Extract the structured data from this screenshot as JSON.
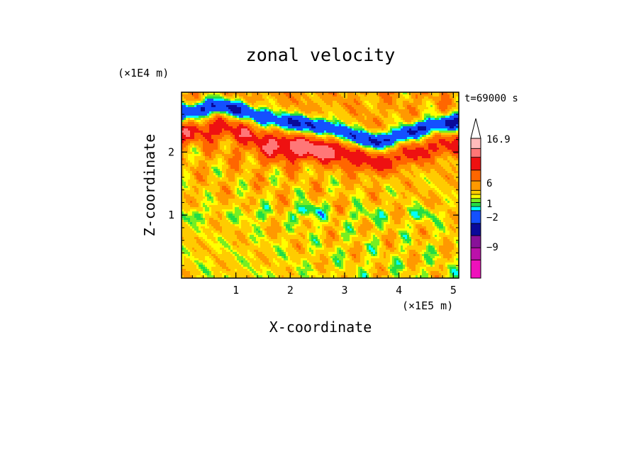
{
  "chart_data": {
    "type": "heatmap",
    "title": "zonal velocity",
    "xlabel": "X-coordinate",
    "ylabel": "Z-coordinate",
    "x_unit": "(×1E5 m)",
    "y_unit": "(×1E4 m)",
    "time_label": "t=69000 s",
    "xlim": [
      0,
      5.1
    ],
    "ylim": [
      0,
      2.95
    ],
    "x_ticks": [
      1,
      2,
      3,
      4,
      5
    ],
    "y_ticks": [
      1,
      2
    ],
    "x_tick_labels": [
      "1",
      "2",
      "3",
      "4",
      "5"
    ],
    "y_tick_labels": [
      "1",
      "2"
    ],
    "colorbar": {
      "levels": [
        {
          "color": "#ee11bb"
        },
        {
          "color": "#bb11aa"
        },
        {
          "color": "#881199"
        },
        {
          "color": "#0a0a9a"
        },
        {
          "color": "#1450ff"
        },
        {
          "color": "#00ffff"
        },
        {
          "color": "#22dd44"
        },
        {
          "color": "#77ee22"
        },
        {
          "color": "#ffff00"
        },
        {
          "color": "#ffcc00"
        },
        {
          "color": "#ff9900"
        },
        {
          "color": "#ff6600"
        },
        {
          "color": "#ee1111"
        },
        {
          "color": "#ff7777"
        },
        {
          "color": "#ffbbbb"
        }
      ],
      "tick_labels": [
        "16.9",
        "6",
        "1",
        "−2",
        "−9"
      ]
    }
  }
}
